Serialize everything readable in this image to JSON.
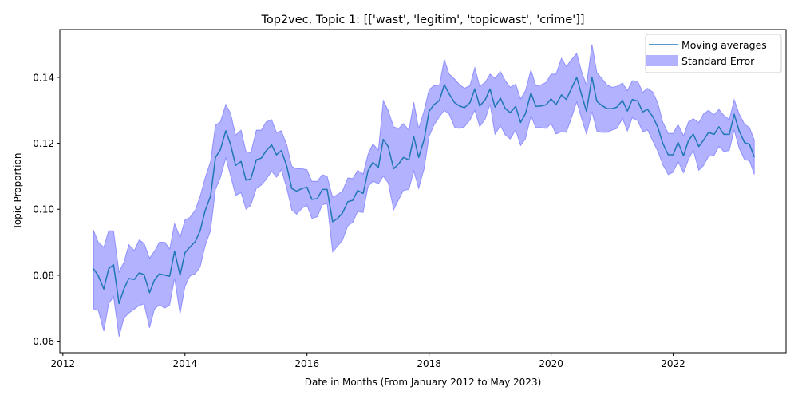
{
  "chart_data": {
    "type": "line",
    "title": "Top2vec, Topic 1: [['wast', 'legitim', 'topicwast', 'crime']]",
    "xlabel": "Date in Months (From January 2012 to May 2023)",
    "ylabel": "Topic Proportion",
    "xlim": [
      2011.95,
      2023.85
    ],
    "ylim": [
      0.0565,
      0.1545
    ],
    "x_ticks": [
      2012,
      2014,
      2016,
      2018,
      2020,
      2022
    ],
    "x_tick_labels": [
      "2012",
      "2014",
      "2016",
      "2018",
      "2020",
      "2022"
    ],
    "y_ticks": [
      0.06,
      0.08,
      0.1,
      0.12,
      0.14
    ],
    "y_tick_labels": [
      "0.06",
      "0.08",
      "0.10",
      "0.12",
      "0.14"
    ],
    "grid": false,
    "legend_position": "top-right",
    "x": [
      2012.5,
      2012.58,
      2012.67,
      2012.75,
      2012.83,
      2012.92,
      2013.0,
      2013.08,
      2013.17,
      2013.25,
      2013.33,
      2013.42,
      2013.5,
      2013.58,
      2013.67,
      2013.75,
      2013.83,
      2013.92,
      2014.0,
      2014.08,
      2014.17,
      2014.25,
      2014.33,
      2014.42,
      2014.5,
      2014.58,
      2014.67,
      2014.75,
      2014.83,
      2014.92,
      2015.0,
      2015.08,
      2015.17,
      2015.25,
      2015.33,
      2015.42,
      2015.5,
      2015.58,
      2015.67,
      2015.75,
      2015.83,
      2015.92,
      2016.0,
      2016.08,
      2016.17,
      2016.25,
      2016.33,
      2016.42,
      2016.5,
      2016.58,
      2016.67,
      2016.75,
      2016.83,
      2016.92,
      2017.0,
      2017.08,
      2017.17,
      2017.25,
      2017.33,
      2017.42,
      2017.5,
      2017.58,
      2017.67,
      2017.75,
      2017.83,
      2017.92,
      2018.0,
      2018.08,
      2018.17,
      2018.25,
      2018.33,
      2018.42,
      2018.5,
      2018.58,
      2018.67,
      2018.75,
      2018.83,
      2018.92,
      2019.0,
      2019.08,
      2019.17,
      2019.25,
      2019.33,
      2019.42,
      2019.5,
      2019.58,
      2019.67,
      2019.75,
      2019.83,
      2019.92,
      2020.0,
      2020.08,
      2020.17,
      2020.25,
      2020.33,
      2020.42,
      2020.5,
      2020.58,
      2020.67,
      2020.75,
      2020.83,
      2020.92,
      2021.0,
      2021.08,
      2021.17,
      2021.25,
      2021.33,
      2021.42,
      2021.5,
      2021.58,
      2021.67,
      2021.75,
      2021.83,
      2021.92,
      2022.0,
      2022.08,
      2022.17,
      2022.25,
      2022.33,
      2022.42,
      2022.5,
      2022.58,
      2022.67,
      2022.75,
      2022.83,
      2022.92,
      2023.0,
      2023.08,
      2023.17,
      2023.25,
      2023.33
    ],
    "series": [
      {
        "name": "Moving averages",
        "color": "#1f77b4",
        "values": [
          0.082,
          0.0798,
          0.0758,
          0.082,
          0.0832,
          0.0714,
          0.0758,
          0.079,
          0.0787,
          0.0807,
          0.0802,
          0.0747,
          0.0785,
          0.0804,
          0.08,
          0.0797,
          0.0873,
          0.08,
          0.0868,
          0.0885,
          0.0902,
          0.0935,
          0.0995,
          0.104,
          0.1157,
          0.118,
          0.1238,
          0.1195,
          0.1133,
          0.1145,
          0.1088,
          0.1092,
          0.115,
          0.1155,
          0.1177,
          0.1195,
          0.1165,
          0.1178,
          0.113,
          0.1063,
          0.1055,
          0.1063,
          0.1067,
          0.103,
          0.1032,
          0.106,
          0.106,
          0.0962,
          0.0972,
          0.0988,
          0.1023,
          0.1027,
          0.1057,
          0.1048,
          0.1117,
          0.1142,
          0.1127,
          0.1212,
          0.119,
          0.1123,
          0.1137,
          0.1157,
          0.115,
          0.122,
          0.1157,
          0.1212,
          0.1297,
          0.1317,
          0.133,
          0.1378,
          0.135,
          0.1323,
          0.1313,
          0.1308,
          0.1323,
          0.1365,
          0.1313,
          0.1332,
          0.1365,
          0.131,
          0.1337,
          0.1305,
          0.1293,
          0.1312,
          0.1263,
          0.129,
          0.1353,
          0.1312,
          0.1313,
          0.1317,
          0.1335,
          0.1317,
          0.1347,
          0.1333,
          0.1365,
          0.14,
          0.1347,
          0.1297,
          0.14,
          0.1327,
          0.1315,
          0.1305,
          0.1305,
          0.131,
          0.133,
          0.1298,
          0.1333,
          0.1328,
          0.1295,
          0.1303,
          0.128,
          0.1248,
          0.12,
          0.1165,
          0.1165,
          0.1203,
          0.1162,
          0.1208,
          0.1228,
          0.119,
          0.121,
          0.1233,
          0.1227,
          0.125,
          0.1227,
          0.1227,
          0.1288,
          0.1238,
          0.1202,
          0.1197,
          0.1158
        ]
      }
    ],
    "band": {
      "name": "Standard Error",
      "color": "#0000ff",
      "opacity": 0.3,
      "upper": [
        0.0937,
        0.09,
        0.0885,
        0.0935,
        0.0935,
        0.081,
        0.084,
        0.0893,
        0.0875,
        0.0907,
        0.0897,
        0.0852,
        0.0873,
        0.09,
        0.09,
        0.088,
        0.0957,
        0.0915,
        0.0968,
        0.0975,
        0.0998,
        0.104,
        0.1095,
        0.1145,
        0.1255,
        0.1265,
        0.1318,
        0.129,
        0.1225,
        0.124,
        0.1175,
        0.1172,
        0.124,
        0.124,
        0.1265,
        0.1272,
        0.1233,
        0.1238,
        0.1195,
        0.113,
        0.1123,
        0.1123,
        0.112,
        0.1085,
        0.1085,
        0.1105,
        0.11,
        0.1037,
        0.1045,
        0.1055,
        0.1095,
        0.1093,
        0.1118,
        0.1107,
        0.1167,
        0.1198,
        0.118,
        0.133,
        0.13,
        0.125,
        0.1245,
        0.126,
        0.124,
        0.1325,
        0.1245,
        0.13,
        0.1363,
        0.1375,
        0.1377,
        0.1455,
        0.141,
        0.1395,
        0.1378,
        0.1367,
        0.1375,
        0.143,
        0.1373,
        0.1385,
        0.141,
        0.1397,
        0.1418,
        0.139,
        0.137,
        0.138,
        0.1335,
        0.136,
        0.1423,
        0.1375,
        0.1377,
        0.1385,
        0.141,
        0.141,
        0.1458,
        0.1433,
        0.1453,
        0.1473,
        0.1418,
        0.1377,
        0.15,
        0.1415,
        0.1397,
        0.1377,
        0.137,
        0.1373,
        0.1383,
        0.136,
        0.139,
        0.1388,
        0.1355,
        0.1367,
        0.1355,
        0.1322,
        0.1265,
        0.123,
        0.123,
        0.1257,
        0.1223,
        0.1265,
        0.1275,
        0.1263,
        0.129,
        0.13,
        0.1287,
        0.1303,
        0.1285,
        0.1272,
        0.1333,
        0.129,
        0.1258,
        0.1248,
        0.121
      ],
      "lower": [
        0.0698,
        0.0693,
        0.063,
        0.0713,
        0.0735,
        0.0613,
        0.067,
        0.0685,
        0.0697,
        0.0708,
        0.0713,
        0.064,
        0.0697,
        0.071,
        0.07,
        0.071,
        0.079,
        0.0682,
        0.0765,
        0.0797,
        0.0805,
        0.0825,
        0.0888,
        0.0935,
        0.106,
        0.1095,
        0.1155,
        0.11,
        0.1042,
        0.105,
        0.1,
        0.1012,
        0.1063,
        0.1073,
        0.109,
        0.1115,
        0.1097,
        0.112,
        0.1062,
        0.0998,
        0.0985,
        0.1003,
        0.1012,
        0.0972,
        0.0977,
        0.1013,
        0.1017,
        0.087,
        0.0888,
        0.0905,
        0.095,
        0.096,
        0.0993,
        0.099,
        0.1068,
        0.1085,
        0.1077,
        0.11,
        0.108,
        0.0998,
        0.1028,
        0.1057,
        0.106,
        0.1115,
        0.1063,
        0.1123,
        0.122,
        0.1255,
        0.128,
        0.13,
        0.1288,
        0.1248,
        0.1245,
        0.125,
        0.127,
        0.13,
        0.125,
        0.1273,
        0.1318,
        0.1227,
        0.1253,
        0.1225,
        0.1213,
        0.124,
        0.1193,
        0.1213,
        0.1283,
        0.1247,
        0.1247,
        0.1245,
        0.126,
        0.1228,
        0.1235,
        0.1233,
        0.1275,
        0.1325,
        0.1275,
        0.1228,
        0.1295,
        0.1237,
        0.1233,
        0.1233,
        0.124,
        0.1245,
        0.1275,
        0.1237,
        0.1277,
        0.1268,
        0.1235,
        0.124,
        0.1205,
        0.1175,
        0.1135,
        0.1105,
        0.1112,
        0.1145,
        0.111,
        0.115,
        0.1178,
        0.1118,
        0.1133,
        0.116,
        0.1163,
        0.119,
        0.1175,
        0.1178,
        0.124,
        0.1185,
        0.115,
        0.1147,
        0.1105
      ]
    }
  }
}
